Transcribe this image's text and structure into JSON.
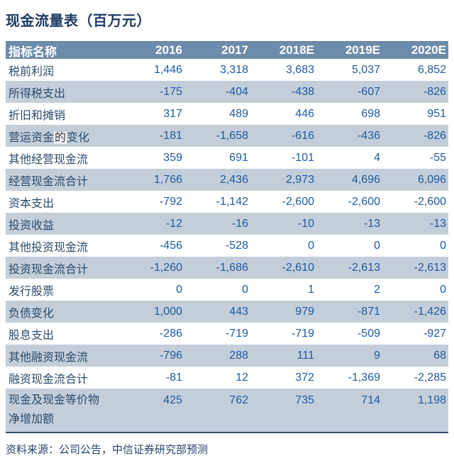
{
  "title": "现金流量表（百万元）",
  "table": {
    "header": {
      "label": "指标名称",
      "columns": [
        "2016",
        "2017",
        "2018E",
        "2019E",
        "2020E"
      ]
    },
    "rows": [
      {
        "label": "税前利润",
        "values": [
          "1,446",
          "3,318",
          "3,683",
          "5,037",
          "6,852"
        ],
        "shaded": false
      },
      {
        "label": "所得税支出",
        "values": [
          "-175",
          "-404",
          "-438",
          "-607",
          "-826"
        ],
        "shaded": true
      },
      {
        "label": "折旧和摊销",
        "values": [
          "317",
          "489",
          "446",
          "698",
          "951"
        ],
        "shaded": false
      },
      {
        "label": "营运资金的变化",
        "label_pre": "营运资金",
        "label_hl": "的",
        "label_post": "变化",
        "values": [
          "-181",
          "-1,658",
          "-616",
          "-436",
          "-826"
        ],
        "shaded": true
      },
      {
        "label": "其他经营现金流",
        "values": [
          "359",
          "691",
          "-101",
          "4",
          "-55"
        ],
        "shaded": false
      },
      {
        "label": "经营现金流合计",
        "values": [
          "1,766",
          "2,436",
          "2,973",
          "4,696",
          "6,096"
        ],
        "shaded": true
      },
      {
        "label": "资本支出",
        "values": [
          "-792",
          "-1,142",
          "-2,600",
          "-2,600",
          "-2,600"
        ],
        "shaded": false
      },
      {
        "label": "投资收益",
        "values": [
          "-12",
          "-16",
          "-10",
          "-13",
          "-13"
        ],
        "shaded": true
      },
      {
        "label": "其他投资现金流",
        "values": [
          "-456",
          "-528",
          "0",
          "0",
          "0"
        ],
        "shaded": false
      },
      {
        "label": "投资现金流合计",
        "values": [
          "-1,260",
          "-1,686",
          "-2,610",
          "-2,613",
          "-2,613"
        ],
        "shaded": true
      },
      {
        "label": "发行股票",
        "values": [
          "0",
          "0",
          "1",
          "2",
          "0"
        ],
        "shaded": false
      },
      {
        "label": "负债变化",
        "values": [
          "1,000",
          "443",
          "979",
          "-871",
          "-1,426"
        ],
        "shaded": true
      },
      {
        "label": "股息支出",
        "values": [
          "-286",
          "-719",
          "-719",
          "-509",
          "-927"
        ],
        "shaded": false
      },
      {
        "label": "其他融资现金流",
        "values": [
          "-796",
          "288",
          "111",
          "9",
          "68"
        ],
        "shaded": true
      },
      {
        "label": "融资现金流合计",
        "values": [
          "-81",
          "12",
          "372",
          "-1,369",
          "-2,285"
        ],
        "shaded": false
      },
      {
        "label": "现金及现金等价物净增加额",
        "label_lines": [
          "现金及现金等价物",
          "净增加额"
        ],
        "values": [
          "425",
          "762",
          "735",
          "714",
          "1,198"
        ],
        "shaded": true,
        "tall": true
      }
    ]
  },
  "source_note": "资料来源：公司公告，中信证券研究部预测",
  "colors": {
    "title_text": "#1c3a66",
    "header_bg": "#6d8cab",
    "header_text": "#ffffff",
    "shaded_row_bg": "#c4cedb",
    "label_text": "#2a4a6b",
    "number_text": "#1e5aa0",
    "bottom_border": "#2c4d6e"
  }
}
